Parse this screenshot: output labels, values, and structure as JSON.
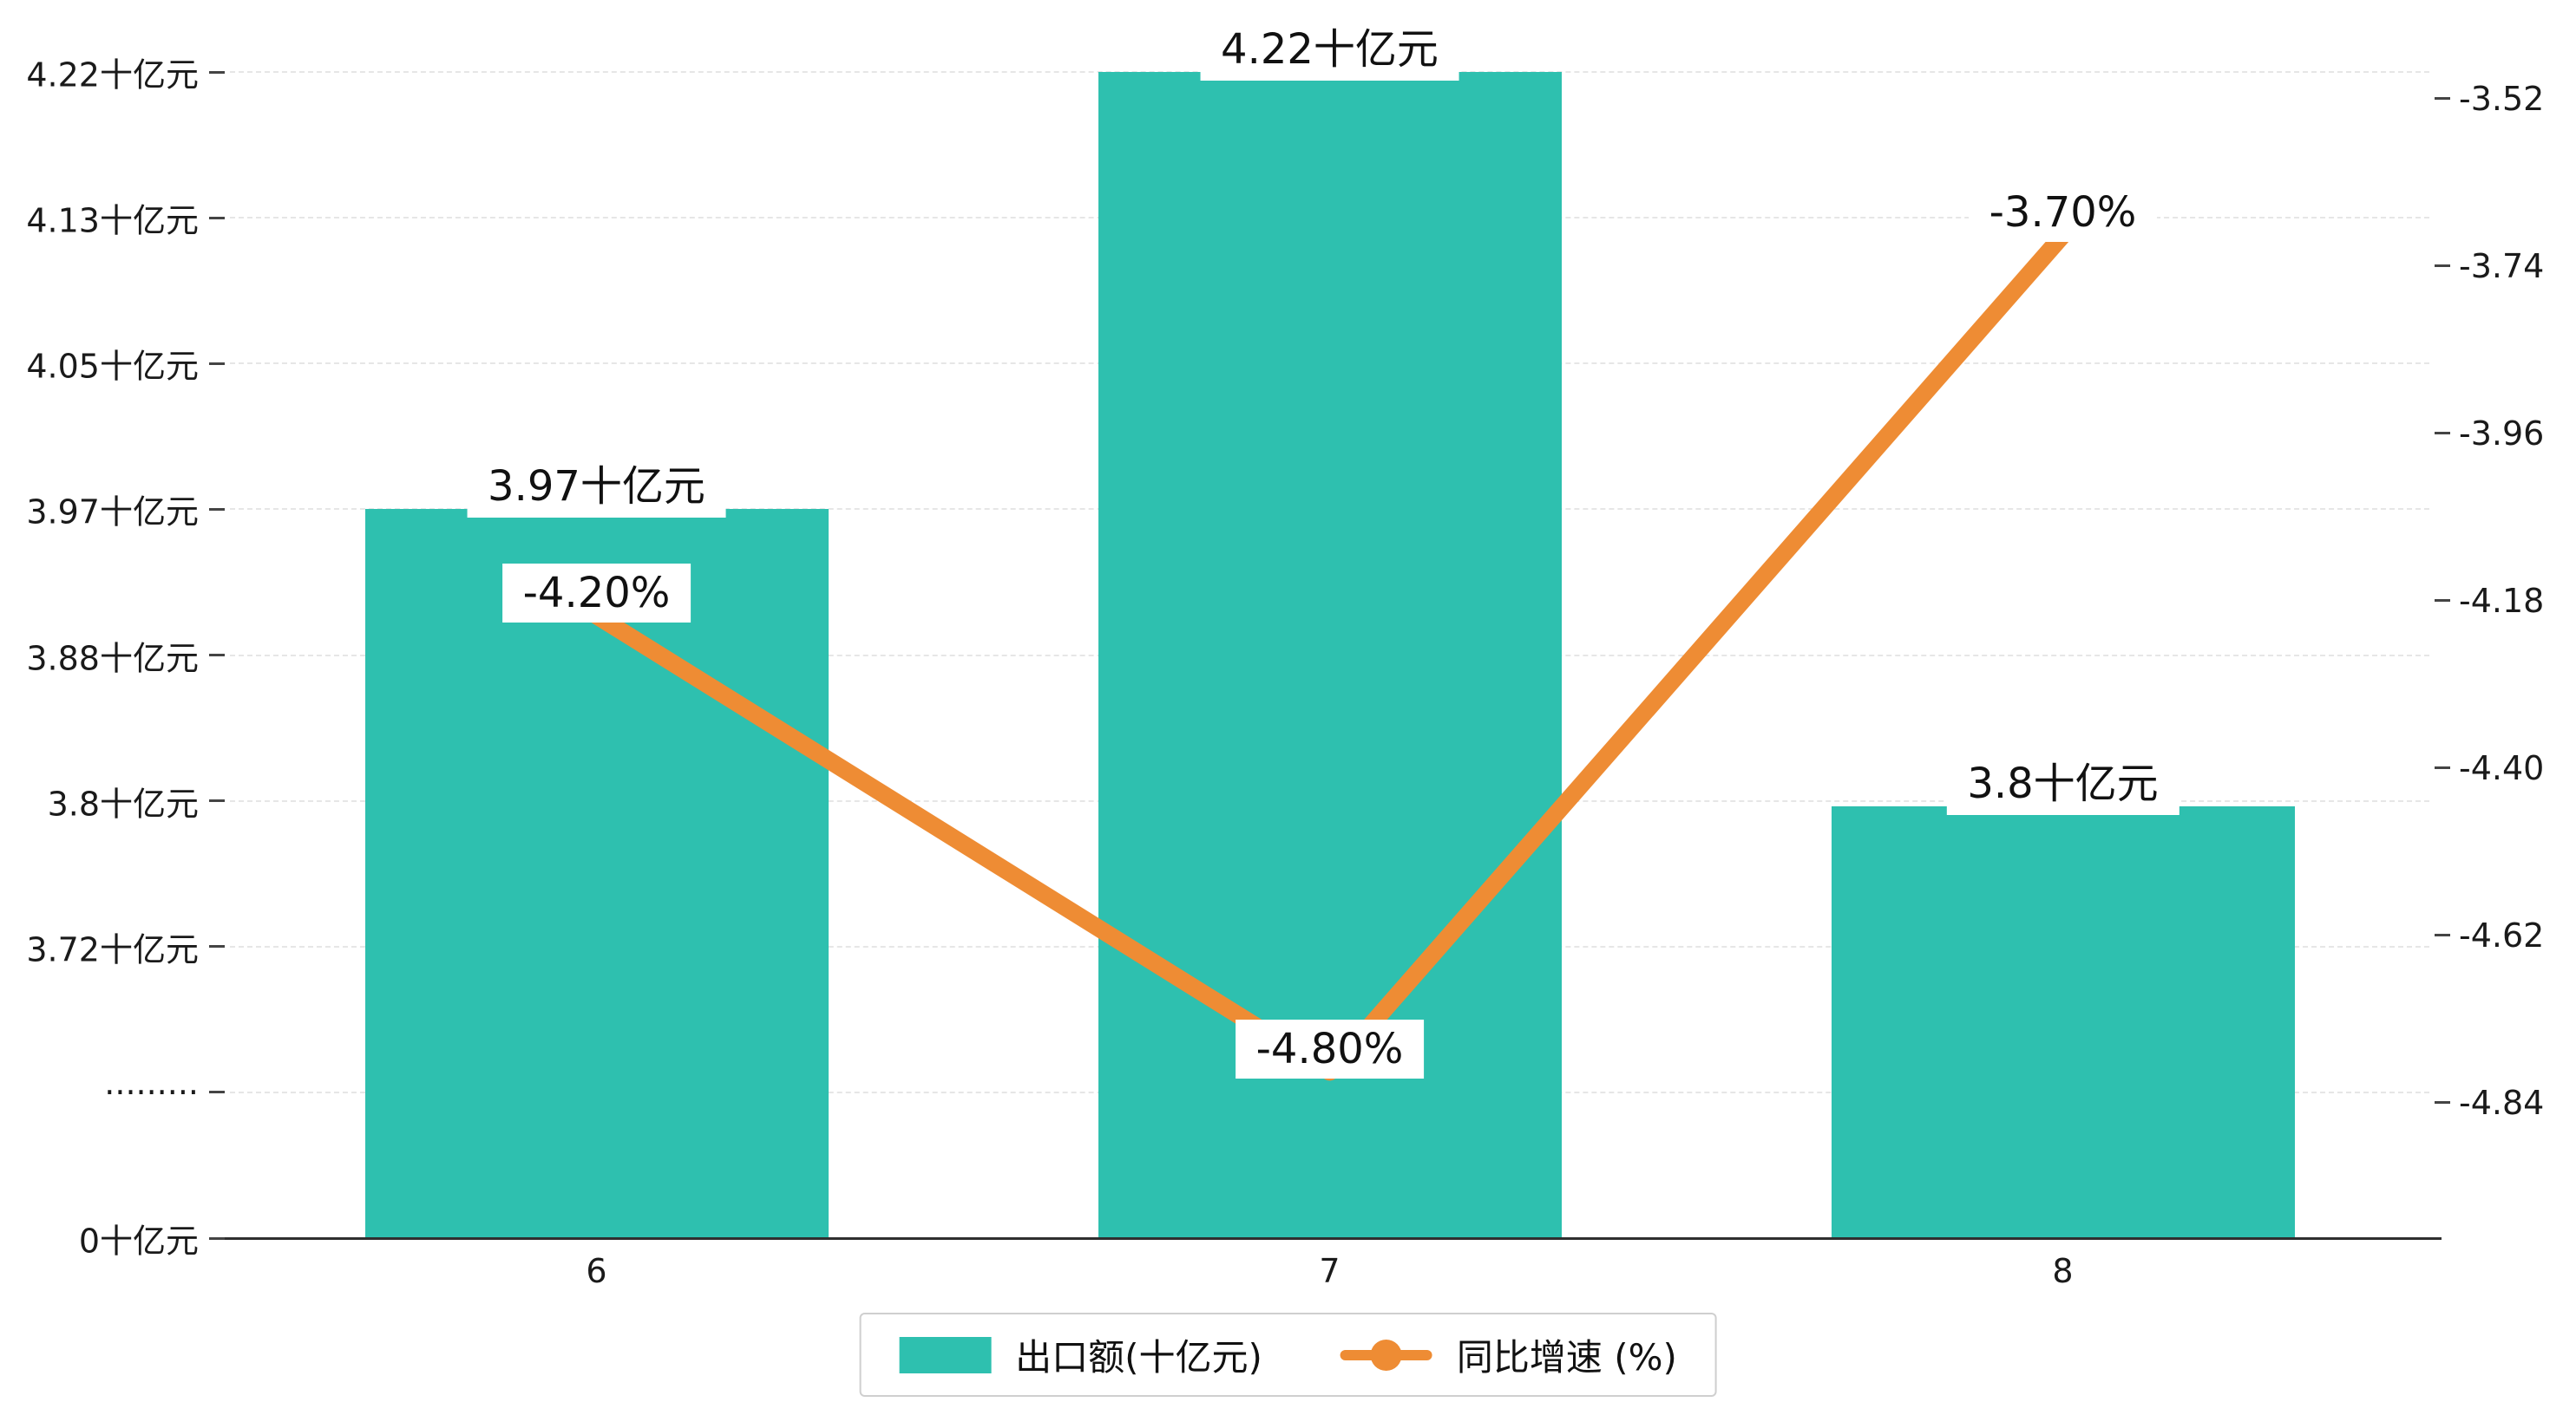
{
  "chart_data": {
    "type": [
      "bar",
      "line"
    ],
    "title": "",
    "categories": [
      "6",
      "7",
      "8"
    ],
    "series": [
      {
        "name": "出口额(十亿元)",
        "type": "bar",
        "axis": "left",
        "color": "#2ec0af",
        "values": [
          3.97,
          4.22,
          3.8
        ],
        "labels": [
          "3.97十亿元",
          "4.22十亿元",
          "3.8十亿元"
        ]
      },
      {
        "name": "同比增速 (%)",
        "type": "line",
        "axis": "right",
        "color": "#ee8c34",
        "values": [
          -4.2,
          -4.8,
          -3.7
        ],
        "labels": [
          "-4.20%",
          "-4.80%",
          "-3.70%"
        ]
      }
    ],
    "left_axis": {
      "tick_labels": [
        "4.22十亿元",
        "4.13十亿元",
        "4.05十亿元",
        "3.97十亿元",
        "3.88十亿元",
        "3.8十亿元",
        "3.72十亿元",
        "·········",
        "0十亿元"
      ],
      "tick_values": [
        4.22,
        4.13,
        4.05,
        3.97,
        3.88,
        3.8,
        3.72,
        null,
        0
      ],
      "axis_break": true,
      "ylim": [
        0,
        4.22
      ]
    },
    "right_axis": {
      "tick_labels": [
        "-3.52",
        "-3.74",
        "-3.96",
        "-4.18",
        "-4.40",
        "-4.62",
        "-4.84"
      ],
      "tick_values": [
        -3.52,
        -3.74,
        -3.96,
        -4.18,
        -4.4,
        -4.62,
        -4.84
      ],
      "ylim": [
        -4.84,
        -3.52
      ]
    },
    "x_axis": {
      "tick_labels": [
        "6",
        "7",
        "8"
      ]
    },
    "grid": "dashed-horizontal",
    "legend_position": "bottom-center",
    "colors": {
      "bar": "#2ec0af",
      "line": "#ee8c34",
      "text": "#1a1a1a",
      "grid": "#e6e6e6",
      "axis": "#2f2f2f",
      "label_background": "#ffffff"
    }
  }
}
